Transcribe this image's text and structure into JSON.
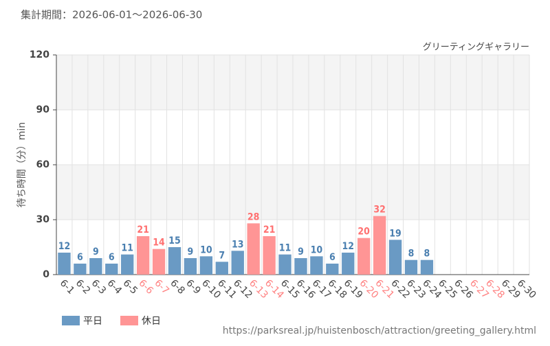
{
  "chart_data": {
    "type": "bar",
    "title": "集計期間：2026-06-01～2026-06-30",
    "subtitle": "グリーティングギャラリー",
    "y_label": "待ち時間（分）min",
    "source": "https://parksreal.jp/huistenbosch/attraction/greeting_gallery.html",
    "categories": [
      "6-1",
      "6-2",
      "6-3",
      "6-4",
      "6-5",
      "6-6",
      "6-7",
      "6-8",
      "6-9",
      "6-10",
      "6-11",
      "6-12",
      "6-13",
      "6-14",
      "6-15",
      "6-16",
      "6-17",
      "6-18",
      "6-19",
      "6-20",
      "6-21",
      "6-22",
      "6-23",
      "6-24",
      "6-25",
      "6-26",
      "6-27",
      "6-28",
      "6-29",
      "6-30"
    ],
    "category_colors": [
      "#444",
      "#444",
      "#444",
      "#444",
      "#444",
      "#ff8080",
      "#ff8080",
      "#444",
      "#444",
      "#444",
      "#444",
      "#444",
      "#ff8080",
      "#ff8080",
      "#444",
      "#444",
      "#444",
      "#444",
      "#444",
      "#ff8080",
      "#ff8080",
      "#444",
      "#444",
      "#444",
      "#444",
      "#444",
      "#ff8080",
      "#ff8080",
      "#444",
      "#444"
    ],
    "series": [
      {
        "name": "平日",
        "color": "#6a9ac4",
        "label_color": "#4a7fb0",
        "values": [
          12,
          6,
          9,
          6,
          11,
          null,
          null,
          15,
          9,
          10,
          7,
          13,
          null,
          null,
          11,
          9,
          10,
          6,
          12,
          null,
          null,
          19,
          8,
          8,
          null,
          null,
          null,
          null,
          null,
          null
        ]
      },
      {
        "name": "休日",
        "color": "#ff9595",
        "label_color": "#ff7070",
        "values": [
          null,
          null,
          null,
          null,
          null,
          21,
          14,
          null,
          null,
          null,
          null,
          null,
          28,
          21,
          null,
          null,
          null,
          null,
          null,
          20,
          32,
          null,
          null,
          null,
          null,
          null,
          null,
          null,
          null,
          null
        ]
      }
    ],
    "ylim": [
      0,
      120
    ],
    "yticks": [
      0,
      30,
      60,
      90,
      120
    ],
    "grid": true
  }
}
